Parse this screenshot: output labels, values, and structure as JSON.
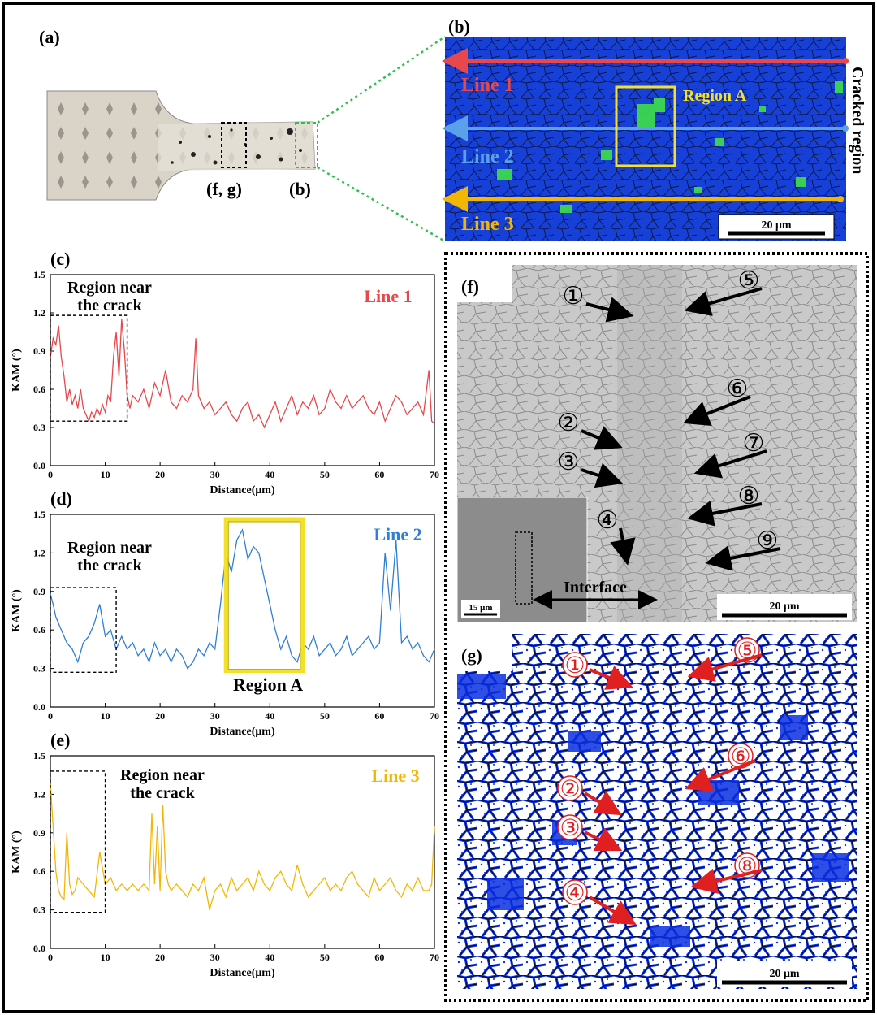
{
  "panels": {
    "a": {
      "label": "(a)",
      "marker_fg": "(f, g)",
      "marker_b": "(b)"
    },
    "b": {
      "label": "(b)",
      "lines": [
        "Line 1",
        "Line 2",
        "Line 3"
      ],
      "region": "Region A",
      "side_label": "Cracked region",
      "scalebar": "20 μm"
    },
    "f": {
      "label": "(f)",
      "markers": [
        "①",
        "②",
        "③",
        "④",
        "⑤",
        "⑥",
        "⑦",
        "⑧",
        "⑨"
      ],
      "interface": "Interface",
      "scalebar": "20 μm",
      "inset_scalebar": "15 μm"
    },
    "g": {
      "label": "(g)",
      "markers": [
        "①",
        "②",
        "③",
        "④",
        "⑤",
        "⑥",
        "⑧"
      ],
      "scalebar": "20 μm"
    }
  },
  "colors": {
    "line1": "#e8474b",
    "line2": "#2f7fd6",
    "line3": "#f2b705",
    "region_box": "#f2e02a",
    "dotted_green": "#2fbf4f",
    "ebsd_blue": "#1640d8",
    "ebsd_green": "#3ee04a",
    "kam_blue": "#0a2fe0"
  },
  "chart_data": [
    {
      "type": "line",
      "panel": "(c)",
      "title": "",
      "xlabel": "Distance(μm)",
      "ylabel": "KAM (°)",
      "xlim": [
        0,
        70
      ],
      "ylim": [
        0,
        1.5
      ],
      "xticks": [
        0,
        10,
        20,
        30,
        40,
        50,
        60,
        70
      ],
      "yticks": [
        0.0,
        0.3,
        0.6,
        0.9,
        1.2,
        1.5
      ],
      "series": [
        {
          "name": "Line 1",
          "color": "#e8474b",
          "x": [
            0,
            0.5,
            1,
            1.5,
            2,
            2.5,
            3,
            3.5,
            4,
            4.5,
            5,
            5.5,
            6,
            6.5,
            7,
            7.5,
            8,
            8.5,
            9,
            9.5,
            10,
            10.5,
            11,
            11.5,
            12,
            12.5,
            13,
            13.5,
            14,
            14.5,
            15,
            16,
            17,
            18,
            19,
            20,
            21,
            22,
            23,
            24,
            25,
            26,
            26.5,
            27,
            28,
            29,
            30,
            31,
            32,
            33,
            34,
            35,
            36,
            37,
            38,
            39,
            40,
            41,
            42,
            43,
            44,
            45,
            46,
            47,
            48,
            49,
            50,
            51,
            52,
            53,
            54,
            55,
            56,
            57,
            58,
            59,
            60,
            61,
            62,
            63,
            64,
            65,
            66,
            67,
            68,
            69,
            69.5,
            70
          ],
          "y": [
            0.85,
            1.0,
            0.95,
            1.1,
            0.85,
            0.7,
            0.5,
            0.6,
            0.48,
            0.55,
            0.45,
            0.6,
            0.45,
            0.4,
            0.35,
            0.42,
            0.38,
            0.45,
            0.4,
            0.48,
            0.42,
            0.55,
            0.5,
            0.85,
            1.05,
            0.7,
            1.15,
            0.9,
            0.55,
            0.45,
            0.55,
            0.5,
            0.6,
            0.45,
            0.65,
            0.55,
            0.75,
            0.5,
            0.45,
            0.55,
            0.5,
            0.6,
            1.0,
            0.55,
            0.45,
            0.5,
            0.4,
            0.45,
            0.5,
            0.4,
            0.35,
            0.45,
            0.5,
            0.35,
            0.4,
            0.3,
            0.4,
            0.5,
            0.35,
            0.45,
            0.55,
            0.4,
            0.5,
            0.45,
            0.55,
            0.4,
            0.45,
            0.6,
            0.5,
            0.45,
            0.55,
            0.45,
            0.5,
            0.55,
            0.45,
            0.4,
            0.5,
            0.35,
            0.45,
            0.55,
            0.5,
            0.4,
            0.45,
            0.5,
            0.4,
            0.75,
            0.35,
            0.33
          ]
        }
      ],
      "annotations": [
        "Region near the crack"
      ]
    },
    {
      "type": "line",
      "panel": "(d)",
      "title": "",
      "xlabel": "Distance(μm)",
      "ylabel": "KAM (°)",
      "xlim": [
        0,
        70
      ],
      "ylim": [
        0,
        1.5
      ],
      "xticks": [
        0,
        10,
        20,
        30,
        40,
        50,
        60,
        70
      ],
      "yticks": [
        0.0,
        0.3,
        0.6,
        0.9,
        1.2,
        1.5
      ],
      "series": [
        {
          "name": "Line 2",
          "color": "#2f7fd6",
          "x": [
            0,
            0.5,
            1,
            2,
            3,
            4,
            5,
            6,
            7,
            8,
            9,
            10,
            11,
            12,
            13,
            14,
            15,
            16,
            17,
            18,
            19,
            20,
            21,
            22,
            23,
            24,
            25,
            26,
            27,
            28,
            29,
            30,
            31,
            32,
            33,
            34,
            35,
            36,
            37,
            38,
            39,
            40,
            41,
            42,
            43,
            44,
            45,
            46,
            47,
            48,
            49,
            50,
            51,
            52,
            53,
            54,
            55,
            56,
            57,
            58,
            59,
            60,
            61,
            62,
            63,
            64,
            65,
            66,
            67,
            68,
            69,
            70
          ],
          "y": [
            0.88,
            0.8,
            0.7,
            0.6,
            0.5,
            0.45,
            0.35,
            0.5,
            0.55,
            0.65,
            0.8,
            0.55,
            0.6,
            0.45,
            0.55,
            0.45,
            0.5,
            0.4,
            0.45,
            0.35,
            0.5,
            0.4,
            0.45,
            0.35,
            0.45,
            0.4,
            0.3,
            0.35,
            0.45,
            0.4,
            0.5,
            0.45,
            0.8,
            1.2,
            1.05,
            1.3,
            1.38,
            1.15,
            1.25,
            1.2,
            1.0,
            0.8,
            0.6,
            0.45,
            0.55,
            0.4,
            0.35,
            0.5,
            0.45,
            0.55,
            0.4,
            0.45,
            0.5,
            0.4,
            0.45,
            0.55,
            0.4,
            0.45,
            0.5,
            0.55,
            0.45,
            0.5,
            1.2,
            0.75,
            1.3,
            0.5,
            0.55,
            0.45,
            0.5,
            0.4,
            0.35,
            0.45
          ]
        }
      ],
      "annotations": [
        "Region near the crack",
        "Region A"
      ]
    },
    {
      "type": "line",
      "panel": "(e)",
      "title": "",
      "xlabel": "Distance(μm)",
      "ylabel": "KAM (°)",
      "xlim": [
        0,
        70
      ],
      "ylim": [
        0,
        1.5
      ],
      "xticks": [
        0,
        10,
        20,
        30,
        40,
        50,
        60,
        70
      ],
      "yticks": [
        0.0,
        0.3,
        0.6,
        0.9,
        1.2,
        1.5
      ],
      "series": [
        {
          "name": "Line 3",
          "color": "#f2b705",
          "x": [
            0,
            0.5,
            1,
            1.5,
            2,
            2.5,
            3,
            3.5,
            4,
            4.5,
            5,
            6,
            7,
            8,
            9,
            10,
            11,
            12,
            13,
            14,
            15,
            16,
            17,
            18,
            18.5,
            19,
            19.5,
            20,
            20.5,
            21,
            21.5,
            22,
            23,
            24,
            25,
            26,
            27,
            28,
            29,
            30,
            31,
            32,
            33,
            34,
            35,
            36,
            37,
            38,
            39,
            40,
            41,
            42,
            43,
            44,
            45,
            46,
            47,
            48,
            49,
            50,
            51,
            52,
            53,
            54,
            55,
            56,
            57,
            58,
            59,
            60,
            61,
            62,
            63,
            64,
            65,
            66,
            67,
            68,
            69,
            69.5,
            70
          ],
          "y": [
            1.28,
            0.95,
            0.6,
            0.45,
            0.4,
            0.38,
            0.9,
            0.5,
            0.42,
            0.45,
            0.55,
            0.5,
            0.45,
            0.4,
            0.75,
            0.5,
            0.55,
            0.45,
            0.5,
            0.45,
            0.5,
            0.45,
            0.5,
            0.45,
            1.05,
            0.5,
            0.95,
            0.45,
            1.12,
            0.6,
            0.5,
            0.45,
            0.5,
            0.45,
            0.4,
            0.5,
            0.45,
            0.55,
            0.3,
            0.45,
            0.5,
            0.4,
            0.55,
            0.45,
            0.5,
            0.55,
            0.45,
            0.6,
            0.5,
            0.45,
            0.55,
            0.6,
            0.5,
            0.45,
            0.65,
            0.5,
            0.4,
            0.45,
            0.5,
            0.55,
            0.45,
            0.5,
            0.45,
            0.55,
            0.6,
            0.5,
            0.45,
            0.4,
            0.55,
            0.45,
            0.5,
            0.55,
            0.45,
            0.4,
            0.5,
            0.45,
            0.55,
            0.45,
            0.45,
            0.5,
            0.95
          ]
        }
      ],
      "annotations": [
        "Region near the crack"
      ]
    }
  ]
}
